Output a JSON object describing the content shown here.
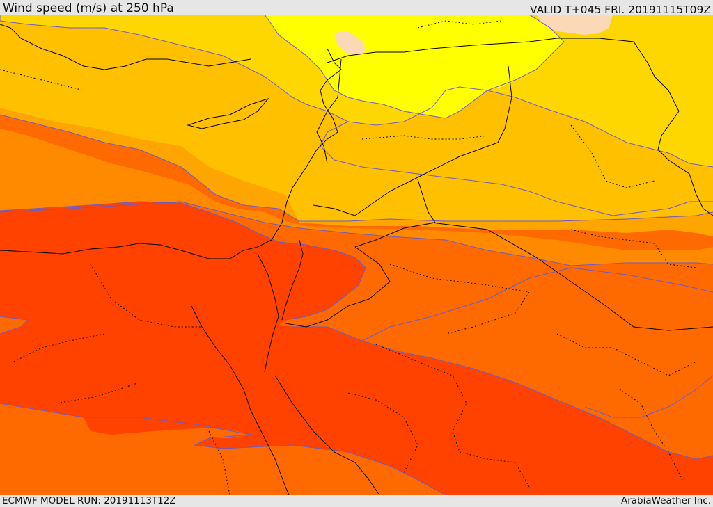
{
  "header": {
    "title": "Wind speed (m/s) at 250 hPa",
    "valid": "VALID T+045 FRI. 20191115T09Z"
  },
  "footer": {
    "model_run": "ECMWF MODEL RUN: 20191113T12Z",
    "credit": "ArabiaWeather Inc."
  },
  "palette": {
    "very_light": "#fbd9b6",
    "yellow": "#ffff00",
    "gold": "#ffd700",
    "amber": "#ffc000",
    "orange_light": "#ffa500",
    "orange": "#ff8a00",
    "orange_dark": "#ff6a00",
    "red_orange": "#ff4200",
    "contour": "#6a5acd"
  }
}
